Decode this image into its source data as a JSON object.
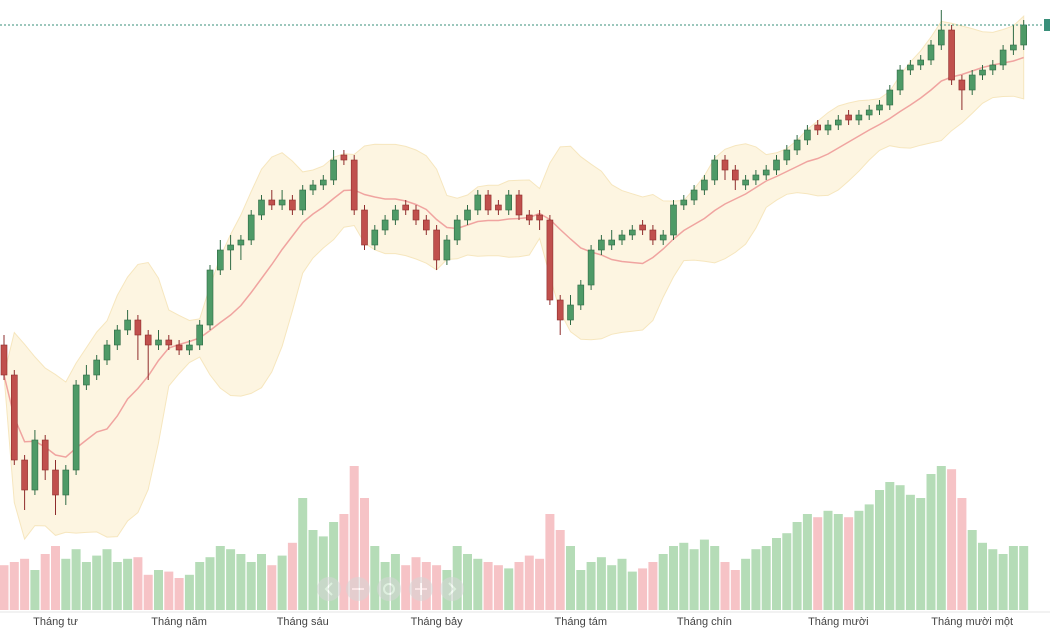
{
  "chart_data": {
    "type": "candlestick",
    "categories": [
      null,
      null,
      null,
      null,
      null,
      "Tháng tư",
      null,
      null,
      null,
      null,
      null,
      null,
      null,
      null,
      null,
      null,
      null,
      "Tháng năm",
      null,
      null,
      null,
      null,
      null,
      null,
      null,
      null,
      null,
      null,
      null,
      "Tháng sáu",
      null,
      null,
      null,
      null,
      null,
      null,
      null,
      null,
      null,
      null,
      null,
      null,
      "Tháng bảy",
      null,
      null,
      null,
      null,
      null,
      null,
      null,
      null,
      null,
      null,
      null,
      null,
      null,
      "Tháng tám",
      null,
      null,
      null,
      null,
      null,
      null,
      null,
      null,
      null,
      null,
      null,
      "Tháng chín",
      null,
      null,
      null,
      null,
      null,
      null,
      null,
      null,
      null,
      null,
      null,
      null,
      "Tháng mười",
      null,
      null,
      null,
      null,
      null,
      null,
      null,
      null,
      null,
      null,
      null,
      null,
      "Tháng mười một",
      null,
      null,
      null,
      null,
      null
    ],
    "ohlc": [
      [
        53,
        55,
        46,
        47
      ],
      [
        47,
        48,
        29,
        30
      ],
      [
        30,
        31,
        20,
        24
      ],
      [
        24,
        36,
        23,
        34
      ],
      [
        34,
        35,
        26,
        28
      ],
      [
        28,
        30,
        19,
        23
      ],
      [
        23,
        29,
        21,
        28
      ],
      [
        28,
        46,
        27,
        45
      ],
      [
        45,
        49,
        44,
        47
      ],
      [
        47,
        51,
        46,
        50
      ],
      [
        50,
        54,
        49,
        53
      ],
      [
        53,
        57,
        52,
        56
      ],
      [
        56,
        60,
        55,
        58
      ],
      [
        58,
        59,
        50,
        55
      ],
      [
        55,
        56,
        46,
        53
      ],
      [
        53,
        56,
        52,
        54
      ],
      [
        54,
        55,
        52,
        53
      ],
      [
        53,
        54,
        51,
        52
      ],
      [
        52,
        54,
        51,
        53
      ],
      [
        53,
        58,
        52,
        57
      ],
      [
        57,
        69,
        56,
        68
      ],
      [
        68,
        74,
        67,
        72
      ],
      [
        72,
        75,
        68,
        73
      ],
      [
        73,
        75,
        70,
        74
      ],
      [
        74,
        80,
        73,
        79
      ],
      [
        79,
        83,
        78,
        82
      ],
      [
        82,
        84,
        80,
        81
      ],
      [
        81,
        84,
        80,
        82
      ],
      [
        82,
        83,
        79,
        80
      ],
      [
        80,
        85,
        79,
        84
      ],
      [
        84,
        86,
        83,
        85
      ],
      [
        85,
        87,
        84,
        86
      ],
      [
        86,
        92,
        85,
        90
      ],
      [
        91,
        92,
        89,
        90
      ],
      [
        90,
        91,
        79,
        80
      ],
      [
        80,
        81,
        72,
        73
      ],
      [
        73,
        77,
        72,
        76
      ],
      [
        76,
        79,
        75,
        78
      ],
      [
        78,
        81,
        77,
        80
      ],
      [
        81,
        82,
        79,
        80
      ],
      [
        80,
        81,
        77,
        78
      ],
      [
        78,
        79,
        75,
        76
      ],
      [
        76,
        77,
        68,
        70
      ],
      [
        70,
        75,
        69,
        74
      ],
      [
        74,
        79,
        73,
        78
      ],
      [
        78,
        81,
        77,
        80
      ],
      [
        80,
        84,
        79,
        83
      ],
      [
        83,
        84,
        79,
        80
      ],
      [
        81,
        82,
        79,
        80
      ],
      [
        80,
        84,
        79,
        83
      ],
      [
        83,
        84,
        78,
        79
      ],
      [
        79,
        80,
        77,
        78
      ],
      [
        79,
        80,
        76,
        78
      ],
      [
        78,
        79,
        61,
        62
      ],
      [
        62,
        63,
        55,
        58
      ],
      [
        58,
        63,
        57,
        61
      ],
      [
        61,
        66,
        60,
        65
      ],
      [
        65,
        73,
        64,
        72
      ],
      [
        72,
        75,
        71,
        74
      ],
      [
        73,
        76,
        72,
        74
      ],
      [
        74,
        76,
        73,
        75
      ],
      [
        75,
        77,
        74,
        76
      ],
      [
        77,
        78,
        75,
        76
      ],
      [
        76,
        77,
        73,
        74
      ],
      [
        74,
        76,
        73,
        75
      ],
      [
        75,
        82,
        74,
        81
      ],
      [
        81,
        83,
        80,
        82
      ],
      [
        82,
        85,
        81,
        84
      ],
      [
        84,
        87,
        83,
        86
      ],
      [
        86,
        91,
        85,
        90
      ],
      [
        90,
        91,
        86,
        88
      ],
      [
        88,
        89,
        84,
        86
      ],
      [
        85,
        87,
        84,
        86
      ],
      [
        86,
        88,
        85,
        87
      ],
      [
        87,
        89,
        86,
        88
      ],
      [
        88,
        91,
        87,
        90
      ],
      [
        90,
        93,
        89,
        92
      ],
      [
        92,
        95,
        91,
        94
      ],
      [
        94,
        97,
        93,
        96
      ],
      [
        97,
        98,
        95,
        96
      ],
      [
        96,
        98,
        95,
        97
      ],
      [
        97,
        99,
        96,
        98
      ],
      [
        99,
        100,
        97,
        98
      ],
      [
        98,
        100,
        97,
        99
      ],
      [
        99,
        101,
        98,
        100
      ],
      [
        100,
        102,
        99,
        101
      ],
      [
        101,
        105,
        100,
        104
      ],
      [
        104,
        109,
        103,
        108
      ],
      [
        108,
        110,
        107,
        109
      ],
      [
        109,
        111,
        108,
        110
      ],
      [
        110,
        114,
        109,
        113
      ],
      [
        113,
        120,
        112,
        116
      ],
      [
        116,
        117,
        105,
        106
      ],
      [
        106,
        107,
        100,
        104
      ],
      [
        104,
        108,
        103,
        107
      ],
      [
        107,
        109,
        106,
        108
      ],
      [
        108,
        110,
        107,
        109
      ],
      [
        109,
        113,
        108,
        112
      ],
      [
        112,
        117,
        111,
        113
      ],
      [
        113,
        118,
        112,
        117
      ]
    ],
    "volume": [
      28,
      30,
      32,
      25,
      35,
      40,
      32,
      38,
      30,
      34,
      38,
      30,
      32,
      33,
      22,
      25,
      24,
      20,
      22,
      30,
      33,
      40,
      38,
      35,
      30,
      35,
      28,
      34,
      42,
      70,
      50,
      46,
      55,
      60,
      90,
      70,
      40,
      30,
      35,
      28,
      33,
      30,
      28,
      25,
      40,
      35,
      32,
      30,
      28,
      26,
      30,
      34,
      32,
      60,
      50,
      40,
      25,
      30,
      33,
      28,
      32,
      24,
      26,
      30,
      35,
      40,
      42,
      38,
      44,
      40,
      30,
      25,
      32,
      38,
      40,
      45,
      48,
      55,
      60,
      58,
      62,
      60,
      58,
      62,
      66,
      75,
      80,
      78,
      72,
      70,
      85,
      90,
      88,
      70,
      50,
      42,
      38,
      35,
      40,
      40
    ],
    "ylim": [
      0,
      120
    ],
    "y2lim": [
      0,
      100
    ],
    "up_color": "#4e9a67",
    "down_color": "#c0504d",
    "up_volume_color": "#b5dcb7",
    "down_volume_color": "#f6c3c6"
  }
}
